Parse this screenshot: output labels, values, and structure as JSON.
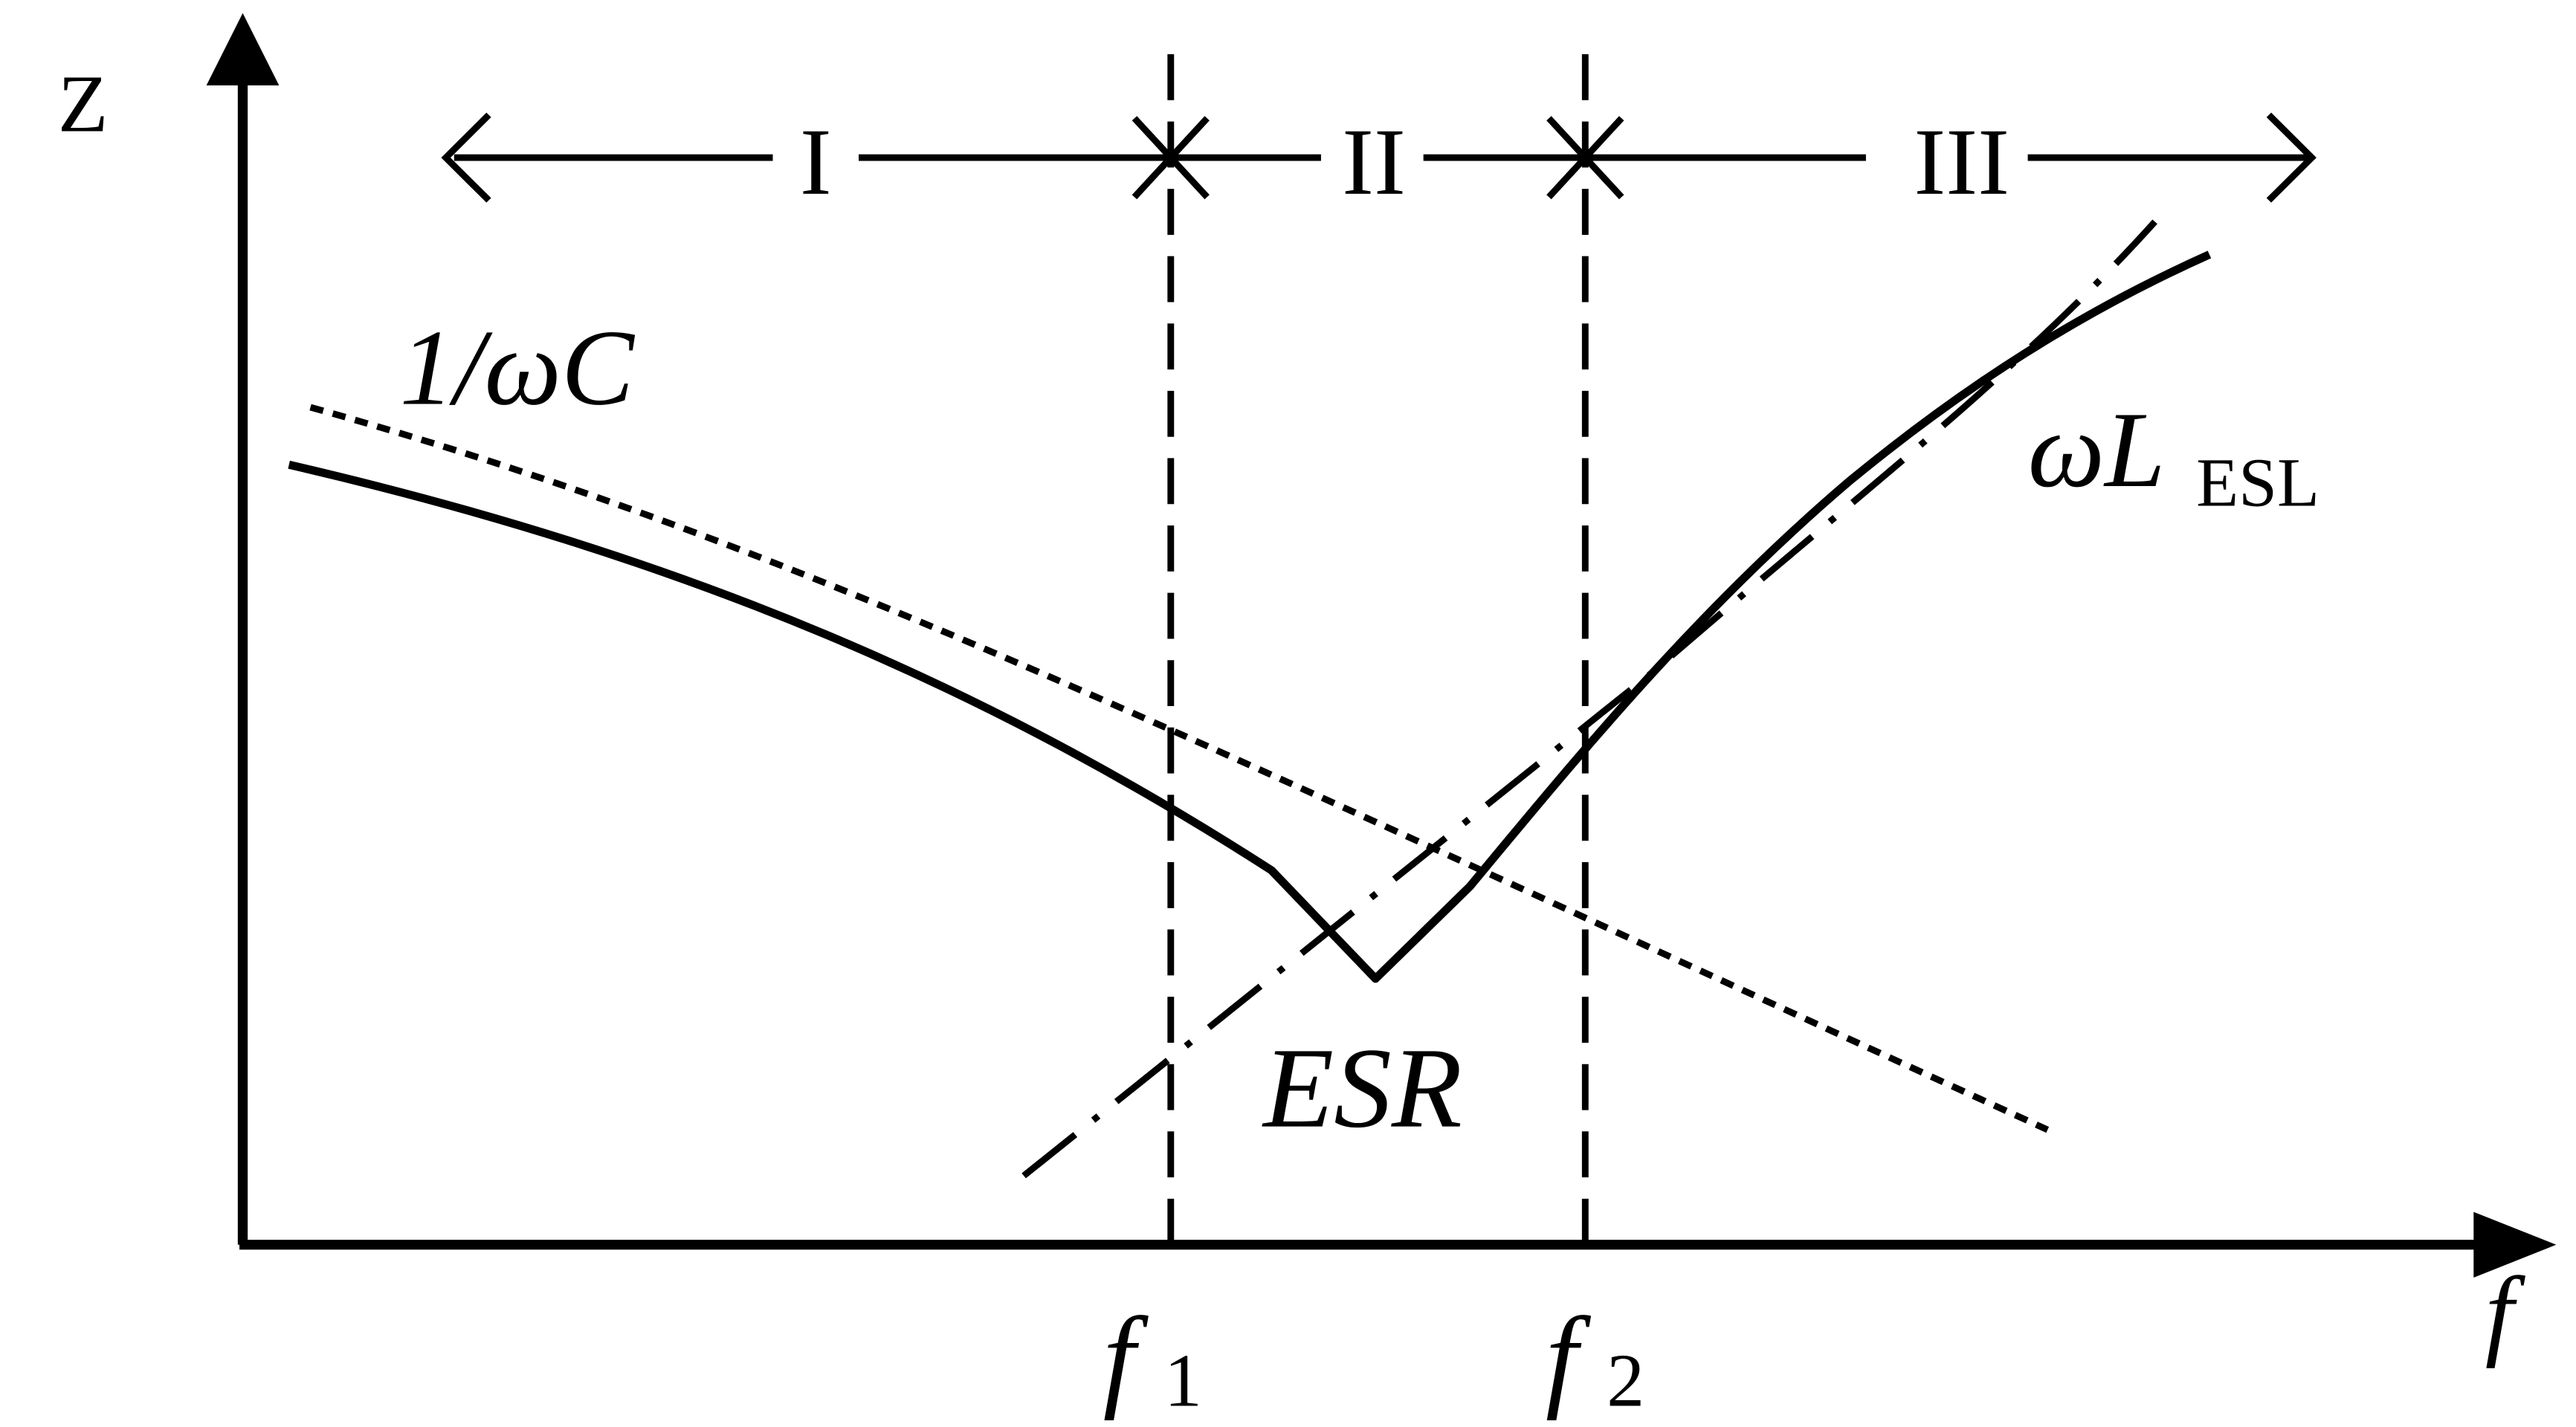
{
  "axes": {
    "y_label": "Z",
    "x_label": "f"
  },
  "regions": {
    "region_1": "I",
    "region_2": "II",
    "region_3": "III"
  },
  "markers": {
    "f1": {
      "base": "f",
      "sub": "1"
    },
    "f2": {
      "base": "f",
      "sub": "2"
    }
  },
  "curve_labels": {
    "capacitive": "1/ωC",
    "inductive_base": "ωL",
    "inductive_sub": "ESL",
    "resistive": "ESR"
  },
  "colors": {
    "ink": "#000000",
    "background": "#ffffff"
  }
}
